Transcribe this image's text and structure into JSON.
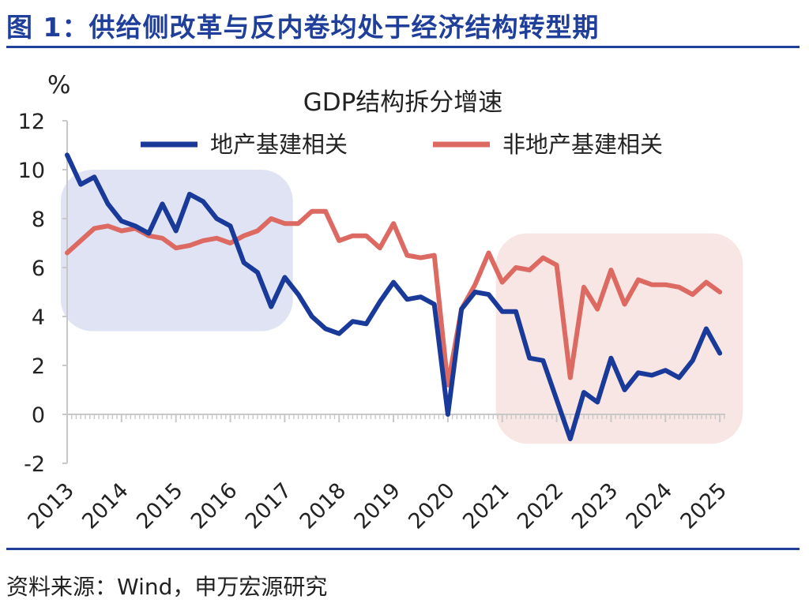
{
  "figure": {
    "title": "图 1：供给侧改革与反内卷均处于经济结构转型期",
    "source": "资料来源：Wind，申万宏源研究"
  },
  "colors": {
    "accent": "#1f3f9a",
    "series_property": "#1a3a9a",
    "series_nonproperty": "#dd6a62",
    "shade_left": "#dfe3f3",
    "shade_right": "#f7e6e3"
  },
  "chart_data": {
    "type": "line",
    "title": "GDP结构拆分增速",
    "ylabel": "%",
    "xlabel": "",
    "ylim": [
      -2,
      12
    ],
    "yticks": [
      -2,
      0,
      2,
      4,
      6,
      8,
      10,
      12
    ],
    "xlim": [
      2013,
      2025.1
    ],
    "xticks": [
      "2013",
      "2014",
      "2015",
      "2016",
      "2017",
      "2018",
      "2019",
      "2020",
      "2021",
      "2022",
      "2023",
      "2024",
      "2025"
    ],
    "legend_position": "top",
    "highlight_ranges": [
      [
        2013,
        2017.15
      ],
      [
        2021,
        2025.25
      ]
    ],
    "series": [
      {
        "name": "地产基建相关",
        "x": [
          2013.0,
          2013.25,
          2013.5,
          2013.75,
          2014.0,
          2014.25,
          2014.5,
          2014.75,
          2015.0,
          2015.25,
          2015.5,
          2015.75,
          2016.0,
          2016.25,
          2016.5,
          2016.75,
          2017.0,
          2017.25,
          2017.5,
          2017.75,
          2018.0,
          2018.25,
          2018.5,
          2018.75,
          2019.0,
          2019.25,
          2019.5,
          2019.75,
          2020.0,
          2020.25,
          2020.5,
          2020.75,
          2021.0,
          2021.25,
          2021.5,
          2021.75,
          2022.0,
          2022.25,
          2022.5,
          2022.75,
          2023.0,
          2023.25,
          2023.5,
          2023.75,
          2024.0,
          2024.25,
          2024.5,
          2024.75,
          2025.0
        ],
        "values": [
          10.6,
          9.4,
          9.7,
          8.6,
          7.9,
          7.7,
          7.4,
          8.6,
          7.5,
          9.0,
          8.7,
          8.0,
          7.7,
          6.2,
          5.8,
          4.4,
          5.6,
          4.9,
          4.0,
          3.5,
          3.3,
          3.8,
          3.7,
          4.6,
          5.4,
          4.7,
          4.8,
          4.5,
          0.0,
          4.3,
          5.0,
          4.9,
          4.2,
          4.2,
          2.3,
          2.2,
          0.6,
          -1.0,
          0.9,
          0.5,
          2.3,
          1.0,
          1.7,
          1.6,
          1.8,
          1.5,
          2.2,
          3.5,
          2.5
        ]
      },
      {
        "name": "非地产基建相关",
        "x": [
          2013.0,
          2013.25,
          2013.5,
          2013.75,
          2014.0,
          2014.25,
          2014.5,
          2014.75,
          2015.0,
          2015.25,
          2015.5,
          2015.75,
          2016.0,
          2016.25,
          2016.5,
          2016.75,
          2017.0,
          2017.25,
          2017.5,
          2017.75,
          2018.0,
          2018.25,
          2018.5,
          2018.75,
          2019.0,
          2019.25,
          2019.5,
          2019.75,
          2020.0,
          2020.25,
          2020.5,
          2020.75,
          2021.0,
          2021.25,
          2021.5,
          2021.75,
          2022.0,
          2022.25,
          2022.5,
          2022.75,
          2023.0,
          2023.25,
          2023.5,
          2023.75,
          2024.0,
          2024.25,
          2024.5,
          2024.75,
          2025.0
        ],
        "values": [
          6.6,
          7.1,
          7.6,
          7.7,
          7.5,
          7.6,
          7.3,
          7.2,
          6.8,
          6.9,
          7.1,
          7.2,
          7.0,
          7.3,
          7.5,
          8.0,
          7.8,
          7.8,
          8.3,
          8.3,
          7.1,
          7.3,
          7.3,
          6.8,
          7.8,
          6.5,
          6.4,
          6.5,
          1.2,
          4.3,
          5.3,
          6.6,
          5.4,
          6.0,
          5.9,
          6.4,
          6.1,
          1.5,
          5.2,
          4.3,
          5.9,
          4.5,
          5.5,
          5.3,
          5.3,
          5.2,
          4.9,
          5.4,
          5.0
        ]
      }
    ]
  }
}
